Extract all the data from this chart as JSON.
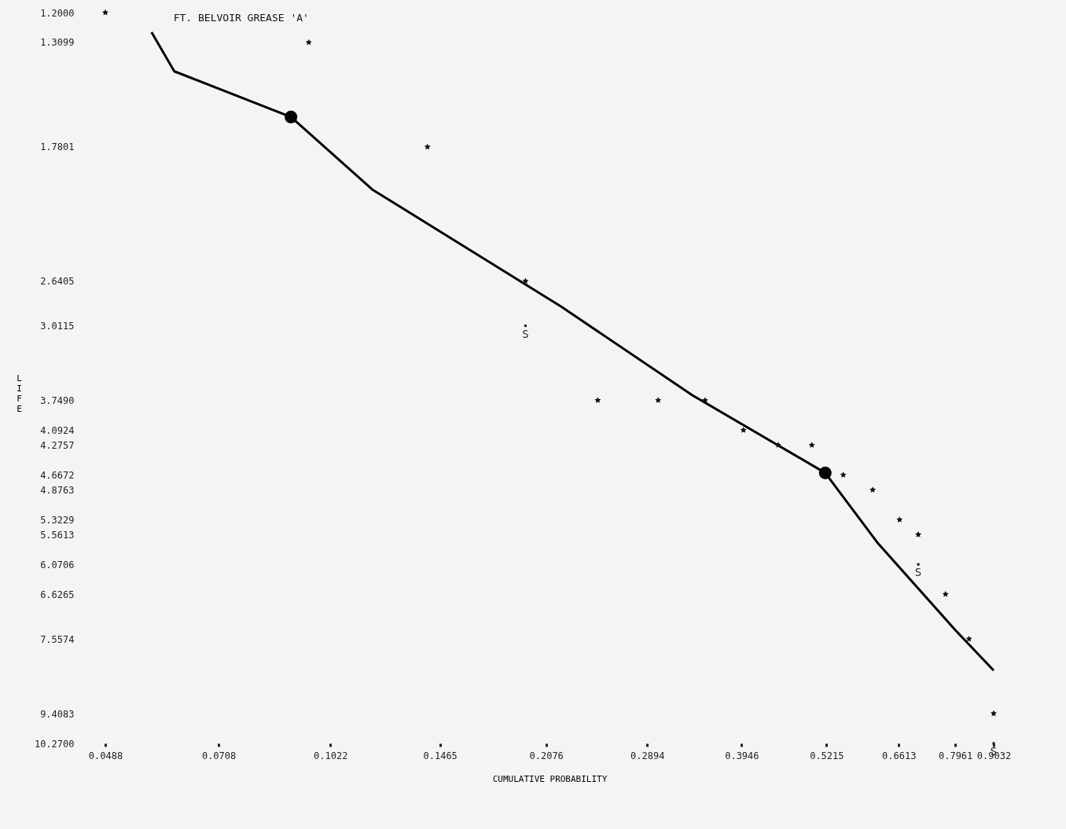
{
  "chart_data": {
    "type": "scatter",
    "title": "FT. BELVOIR GREASE 'A'",
    "xlabel": "CUMULATIVE PROBABILITY",
    "ylabel": "LIFE",
    "log": "xy",
    "grid": false,
    "xlim": [
      0.0488,
      0.9032
    ],
    "xticks": [
      0.0488,
      {
        "value": 0.0708,
        "label": "0.0708"
      },
      0.1022,
      0.1465,
      0.2076,
      0.2894,
      0.3946,
      0.5215,
      0.6613,
      0.7961,
      0.9032
    ],
    "ylim": [
      10.27,
      1.2
    ],
    "yticks": [
      {
        "value": 1.2,
        "label": "1.2000"
      },
      1.3099,
      1.7801,
      2.6405,
      3.0115,
      {
        "value": 3.749,
        "label": "3.7490"
      },
      4.0924,
      4.2757,
      4.6672,
      4.8763,
      5.3229,
      5.5613,
      6.0706,
      6.6265,
      7.5574,
      9.4083,
      {
        "value": 10.27,
        "label": "10.2700"
      }
    ],
    "series": [
      {
        "marker": "star",
        "color": "#111111",
        "x": [
          0.0488,
          0.0952,
          0.1406,
          0.194,
          0.246,
          0.3,
          0.35,
          0.397,
          0.445,
          0.497,
          0.551,
          0.607,
          0.663,
          0.705,
          0.771,
          0.833,
          0.9032
        ],
        "values": [
          1.2,
          1.3099,
          1.7801,
          2.6405,
          3.749,
          3.749,
          3.749,
          4.0924,
          4.2757,
          4.2757,
          4.6672,
          4.8763,
          5.3229,
          5.5613,
          6.6265,
          7.5574,
          9.4083
        ]
      },
      {
        "type": "line",
        "marker": "none",
        "color": "#000000",
        "x": [
          0.0568,
          0.0612,
          0.0898,
          0.1173,
          0.218,
          0.336,
          0.5194,
          0.616,
          0.797,
          0.9032
        ],
        "values": [
          1.271,
          1.426,
          1.631,
          2.018,
          2.846,
          3.695,
          4.64,
          5.69,
          7.37,
          8.29
        ]
      },
      {
        "type": "scatter",
        "marker": "circle",
        "color": "#050505",
        "x": [
          0.0898,
          0.5194
        ],
        "values": [
          1.631,
          4.64
        ]
      },
      {
        "type": "scatter",
        "marker": "square",
        "color": "#222222",
        "x": [
          0.194,
          0.705,
          0.9032
        ],
        "values": [
          3.0115,
          6.0706,
          10.27
        ],
        "value_labels": [
          "S",
          "S",
          "S"
        ]
      }
    ]
  }
}
